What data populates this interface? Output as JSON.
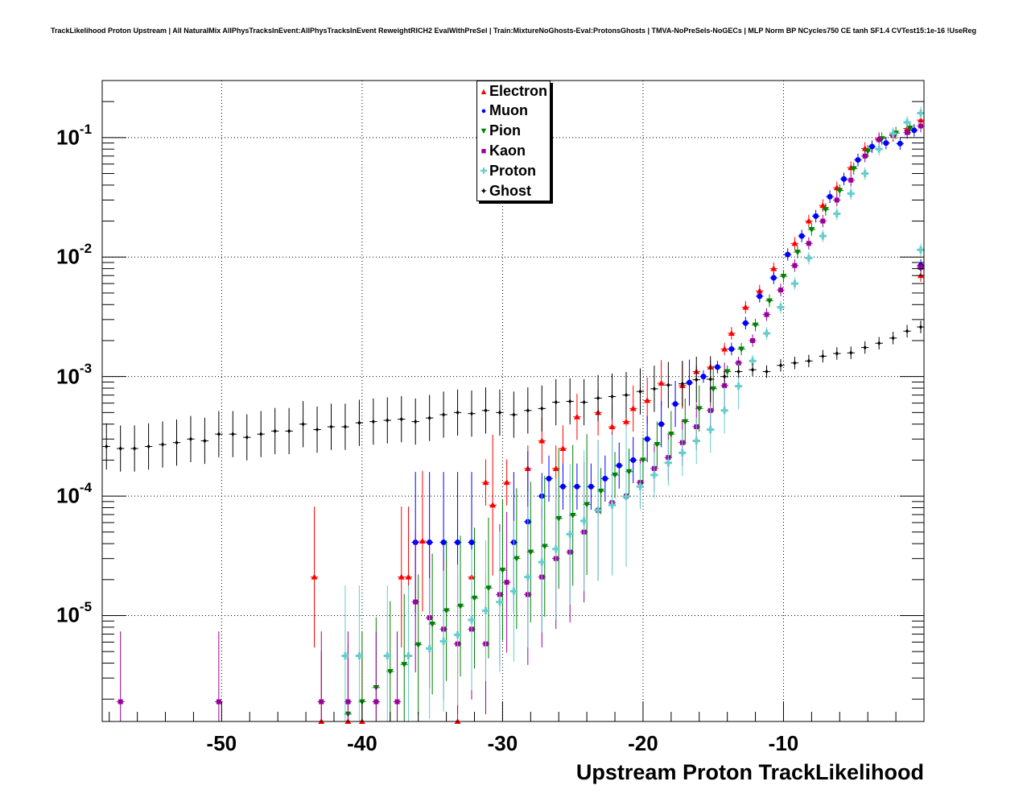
{
  "chart_data": {
    "type": "scatter",
    "title": "TrackLikelihood Proton Upstream | All NaturalMix AllPhysTracksInEvent:AllPhysTracksInEvent ReweightRICH2 EvalWithPreSel | Train:MixtureNoGhosts-Eval:ProtonsGhosts | TMVA-NoPreSels-NoGECs | MLP Norm BP NCycles750 CE tanh SF1.4 CVTest15:1e-16 !UseReg",
    "xlabel": "Upstream Proton TrackLikelihood",
    "ylabel": "",
    "xlim": [
      -58.5,
      0
    ],
    "ylim": [
      1.3e-06,
      0.3
    ],
    "yscale": "log",
    "grid": true,
    "legend_position": "top-center",
    "x_ticks": [
      "-50",
      "-40",
      "-30",
      "-20",
      "-10"
    ],
    "y_ticks": [
      {
        "base": "10",
        "exp": "-1"
      },
      {
        "base": "10",
        "exp": "-2"
      },
      {
        "base": "10",
        "exp": "-3"
      },
      {
        "base": "10",
        "exp": "-4"
      },
      {
        "base": "10",
        "exp": "-5"
      }
    ],
    "series": [
      {
        "name": "Electron",
        "color": "#ff0000",
        "marker": "triangle-up",
        "points": [
          [
            -43.4,
            2.1e-05
          ],
          [
            -42.9,
            1.3e-06
          ],
          [
            -41.0,
            1.3e-06
          ],
          [
            -40.0,
            1.3e-06
          ],
          [
            -37.2,
            2.1e-05
          ],
          [
            -36.7,
            2.1e-05
          ],
          [
            -35.7,
            4.2e-05
          ],
          [
            -33.2,
            1.3e-06
          ],
          [
            -32.2,
            2.1e-05
          ],
          [
            -31.2,
            0.00013
          ],
          [
            -30.7,
            8.4e-05
          ],
          [
            -29.7,
            0.00013
          ],
          [
            -28.2,
            0.00017
          ],
          [
            -27.2,
            0.00029
          ],
          [
            -26.2,
            0.00017
          ],
          [
            -25.7,
            0.00025
          ],
          [
            -24.7,
            0.00046
          ],
          [
            -23.2,
            0.0005
          ],
          [
            -22.2,
            0.00038
          ],
          [
            -21.2,
            0.00042
          ],
          [
            -20.7,
            0.00054
          ],
          [
            -19.7,
            0.00063
          ],
          [
            -18.7,
            0.00088
          ],
          [
            -17.2,
            0.00084
          ],
          [
            -16.2,
            0.0011
          ],
          [
            -15.2,
            0.0012
          ],
          [
            -14.2,
            0.0017
          ],
          [
            -13.7,
            0.0023
          ],
          [
            -12.7,
            0.0038
          ],
          [
            -11.7,
            0.0052
          ],
          [
            -10.7,
            0.008
          ],
          [
            -9.2,
            0.013
          ],
          [
            -8.2,
            0.02
          ],
          [
            -7.2,
            0.027
          ],
          [
            -6.2,
            0.038
          ],
          [
            -5.2,
            0.056
          ],
          [
            -4.2,
            0.081
          ],
          [
            -3.2,
            0.098
          ],
          [
            -2.2,
            0.104
          ],
          [
            -1.2,
            0.119
          ],
          [
            -0.2,
            0.14
          ],
          [
            0.5,
            0.007
          ]
        ]
      },
      {
        "name": "Muon",
        "color": "#0000ff",
        "marker": "circle",
        "points": [
          [
            -36.2,
            4.1e-05
          ],
          [
            -35.2,
            4.1e-05
          ],
          [
            -34.2,
            4.1e-05
          ],
          [
            -33.2,
            4.1e-05
          ],
          [
            -32.2,
            4.1e-05
          ],
          [
            -29.2,
            4.1e-05
          ],
          [
            -28.2,
            6.1e-05
          ],
          [
            -27.2,
            0.0001
          ],
          [
            -26.7,
            0.00014
          ],
          [
            -25.7,
            0.00012
          ],
          [
            -24.7,
            0.00012
          ],
          [
            -23.7,
            0.00012
          ],
          [
            -22.7,
            0.00014
          ],
          [
            -21.7,
            0.00018
          ],
          [
            -20.7,
            0.0002
          ],
          [
            -19.7,
            0.0003
          ],
          [
            -18.7,
            0.0004
          ],
          [
            -17.7,
            0.00059
          ],
          [
            -16.7,
            0.00089
          ],
          [
            -15.7,
            0.001
          ],
          [
            -14.7,
            0.0012
          ],
          [
            -13.7,
            0.0017
          ],
          [
            -12.7,
            0.0028
          ],
          [
            -11.7,
            0.0047
          ],
          [
            -10.7,
            0.0067
          ],
          [
            -9.7,
            0.0105
          ],
          [
            -8.7,
            0.015
          ],
          [
            -7.7,
            0.022
          ],
          [
            -6.7,
            0.032
          ],
          [
            -5.7,
            0.045
          ],
          [
            -4.7,
            0.065
          ],
          [
            -3.7,
            0.084
          ],
          [
            -2.7,
            0.09
          ],
          [
            -1.7,
            0.089
          ],
          [
            -0.7,
            0.115
          ],
          [
            0.5,
            0.0085
          ]
        ]
      },
      {
        "name": "Pion",
        "color": "#008000",
        "marker": "triangle-down",
        "points": [
          [
            -41.0,
            1.5e-06
          ],
          [
            -40.0,
            1.9e-06
          ],
          [
            -39.0,
            2.5e-06
          ],
          [
            -38.0,
            3.4e-06
          ],
          [
            -37.0,
            3.9e-06
          ],
          [
            -36.0,
            5.7e-06
          ],
          [
            -35.0,
            8.5e-06
          ],
          [
            -34.0,
            1.1e-05
          ],
          [
            -33.0,
            1.2e-05
          ],
          [
            -32.0,
            1.4e-05
          ],
          [
            -31.0,
            1.7e-05
          ],
          [
            -30.0,
            2.4e-05
          ],
          [
            -29.0,
            3e-05
          ],
          [
            -28.0,
            3.4e-05
          ],
          [
            -27.0,
            3.8e-05
          ],
          [
            -26.0,
            6.5e-05
          ],
          [
            -25.0,
            6.9e-05
          ],
          [
            -24.0,
            8.5e-05
          ],
          [
            -23.0,
            0.00011
          ],
          [
            -22.0,
            0.00015
          ],
          [
            -21.0,
            0.00016
          ],
          [
            -20.0,
            0.0002
          ],
          [
            -19.0,
            0.00027
          ],
          [
            -18.0,
            0.00033
          ],
          [
            -17.0,
            0.00042
          ],
          [
            -16.0,
            0.00054
          ],
          [
            -15.0,
            0.00079
          ],
          [
            -14.0,
            0.0011
          ],
          [
            -13.0,
            0.0017
          ],
          [
            -12.0,
            0.0027
          ],
          [
            -11.0,
            0.0043
          ],
          [
            -10.0,
            0.0069
          ],
          [
            -9.0,
            0.011
          ],
          [
            -8.0,
            0.017
          ],
          [
            -7.0,
            0.025
          ],
          [
            -6.0,
            0.036
          ],
          [
            -5.0,
            0.055
          ],
          [
            -4.0,
            0.077
          ],
          [
            -3.0,
            0.098
          ],
          [
            -2.0,
            0.109
          ],
          [
            -1.0,
            0.12
          ],
          [
            0.5,
            0.008
          ]
        ]
      },
      {
        "name": "Kaon",
        "color": "#990099",
        "marker": "square",
        "points": [
          [
            -57.2,
            1.9e-06
          ],
          [
            -50.2,
            1.9e-06
          ],
          [
            -42.9,
            1.9e-06
          ],
          [
            -41.0,
            1.9e-06
          ],
          [
            -39.0,
            1.9e-06
          ],
          [
            -37.5,
            1.9e-06
          ],
          [
            -36.2,
            1.3e-05
          ],
          [
            -35.2,
            9.6e-06
          ],
          [
            -34.2,
            7.7e-06
          ],
          [
            -33.2,
            5.8e-06
          ],
          [
            -32.2,
            7.7e-06
          ],
          [
            -31.2,
            5.8e-06
          ],
          [
            -30.2,
            1.5e-05
          ],
          [
            -29.7,
            1.9e-05
          ],
          [
            -28.2,
            1.5e-05
          ],
          [
            -27.2,
            2.1e-05
          ],
          [
            -26.2,
            3e-05
          ],
          [
            -25.2,
            3.4e-05
          ],
          [
            -24.2,
            5e-05
          ],
          [
            -23.2,
            7.6e-05
          ],
          [
            -22.2,
            8.8e-05
          ],
          [
            -21.2,
            0.0001
          ],
          [
            -20.2,
            0.00013
          ],
          [
            -19.2,
            0.00017
          ],
          [
            -18.2,
            0.00021
          ],
          [
            -17.2,
            0.00028
          ],
          [
            -16.2,
            0.00038
          ],
          [
            -15.2,
            0.00052
          ],
          [
            -14.2,
            0.00084
          ],
          [
            -13.2,
            0.0013
          ],
          [
            -12.2,
            0.002
          ],
          [
            -11.2,
            0.0033
          ],
          [
            -10.2,
            0.0053
          ],
          [
            -9.2,
            0.0085
          ],
          [
            -8.2,
            0.013
          ],
          [
            -7.2,
            0.02
          ],
          [
            -6.2,
            0.03
          ],
          [
            -5.2,
            0.044
          ],
          [
            -4.2,
            0.07
          ],
          [
            -3.2,
            0.096
          ],
          [
            -2.2,
            0.105
          ],
          [
            -1.2,
            0.11
          ],
          [
            -0.2,
            0.125
          ],
          [
            0.5,
            0.0082
          ]
        ]
      },
      {
        "name": "Proton",
        "color": "#66cccc",
        "marker": "cross",
        "points": [
          [
            -41.2,
            4.6e-06
          ],
          [
            -40.2,
            4.6e-06
          ],
          [
            -38.2,
            4.6e-06
          ],
          [
            -36.7,
            4.6e-06
          ],
          [
            -35.2,
            5.3e-06
          ],
          [
            -34.2,
            6.1e-06
          ],
          [
            -33.2,
            6.9e-06
          ],
          [
            -32.2,
            9.2e-06
          ],
          [
            -31.2,
            1.1e-05
          ],
          [
            -30.2,
            1.3e-05
          ],
          [
            -29.2,
            1.6e-05
          ],
          [
            -28.2,
            2.1e-05
          ],
          [
            -27.2,
            2.8e-05
          ],
          [
            -26.2,
            3.6e-05
          ],
          [
            -25.2,
            4.8e-05
          ],
          [
            -24.2,
            6.2e-05
          ],
          [
            -23.2,
            7.6e-05
          ],
          [
            -22.2,
            8.4e-05
          ],
          [
            -21.2,
            9.9e-05
          ],
          [
            -20.2,
            0.00012
          ],
          [
            -19.2,
            0.00015
          ],
          [
            -18.2,
            0.00019
          ],
          [
            -17.2,
            0.00023
          ],
          [
            -16.2,
            0.00029
          ],
          [
            -15.2,
            0.00036
          ],
          [
            -14.2,
            0.00052
          ],
          [
            -13.2,
            0.00083
          ],
          [
            -12.2,
            0.00135
          ],
          [
            -11.2,
            0.0023
          ],
          [
            -10.2,
            0.0038
          ],
          [
            -9.2,
            0.006
          ],
          [
            -8.2,
            0.0098
          ],
          [
            -7.2,
            0.015
          ],
          [
            -6.2,
            0.023
          ],
          [
            -5.2,
            0.034
          ],
          [
            -4.2,
            0.05
          ],
          [
            -3.2,
            0.08
          ],
          [
            -2.2,
            0.108
          ],
          [
            -1.2,
            0.134
          ],
          [
            -0.2,
            0.16
          ],
          [
            0.5,
            0.0115
          ]
        ]
      },
      {
        "name": "Ghost",
        "color": "#000000",
        "marker": "star",
        "points": [
          [
            -58.2,
            0.00026
          ],
          [
            -57.2,
            0.00025
          ],
          [
            -56.2,
            0.00025
          ],
          [
            -55.2,
            0.00026
          ],
          [
            -54.2,
            0.00027
          ],
          [
            -53.2,
            0.00028
          ],
          [
            -52.2,
            0.0003
          ],
          [
            -51.2,
            0.00029
          ],
          [
            -50.2,
            0.00033
          ],
          [
            -49.2,
            0.00033
          ],
          [
            -48.2,
            0.00031
          ],
          [
            -47.2,
            0.00033
          ],
          [
            -46.2,
            0.00035
          ],
          [
            -45.2,
            0.00035
          ],
          [
            -44.2,
            0.0004
          ],
          [
            -43.2,
            0.00036
          ],
          [
            -42.2,
            0.00038
          ],
          [
            -41.2,
            0.00038
          ],
          [
            -40.2,
            0.00041
          ],
          [
            -39.2,
            0.00042
          ],
          [
            -38.2,
            0.00043
          ],
          [
            -37.2,
            0.00044
          ],
          [
            -36.2,
            0.00042
          ],
          [
            -35.2,
            0.00045
          ],
          [
            -34.2,
            0.00048
          ],
          [
            -33.2,
            0.0005
          ],
          [
            -32.2,
            0.00049
          ],
          [
            -31.2,
            0.00052
          ],
          [
            -30.2,
            0.0005
          ],
          [
            -29.2,
            0.00048
          ],
          [
            -28.2,
            0.00052
          ],
          [
            -27.2,
            0.00054
          ],
          [
            -26.2,
            0.00061
          ],
          [
            -25.2,
            0.00062
          ],
          [
            -24.2,
            0.00061
          ],
          [
            -23.2,
            0.00066
          ],
          [
            -22.2,
            0.00068
          ],
          [
            -21.2,
            0.0007
          ],
          [
            -20.2,
            0.00075
          ],
          [
            -19.2,
            0.00079
          ],
          [
            -18.2,
            0.00085
          ],
          [
            -17.2,
            0.00087
          ],
          [
            -16.2,
            0.00094
          ],
          [
            -15.2,
            0.00095
          ],
          [
            -14.2,
            0.001
          ],
          [
            -13.2,
            0.0011
          ],
          [
            -12.2,
            0.00114
          ],
          [
            -11.2,
            0.0011
          ],
          [
            -10.2,
            0.00124
          ],
          [
            -9.2,
            0.0013
          ],
          [
            -8.2,
            0.00135
          ],
          [
            -7.2,
            0.00148
          ],
          [
            -6.2,
            0.00156
          ],
          [
            -5.2,
            0.00158
          ],
          [
            -4.2,
            0.00175
          ],
          [
            -3.2,
            0.0019
          ],
          [
            -2.2,
            0.0021
          ],
          [
            -1.2,
            0.0024
          ],
          [
            -0.2,
            0.0026
          ]
        ]
      }
    ]
  },
  "legend": {
    "items": [
      "Electron",
      "Muon",
      "Pion",
      "Kaon",
      "Proton",
      "Ghost"
    ]
  }
}
